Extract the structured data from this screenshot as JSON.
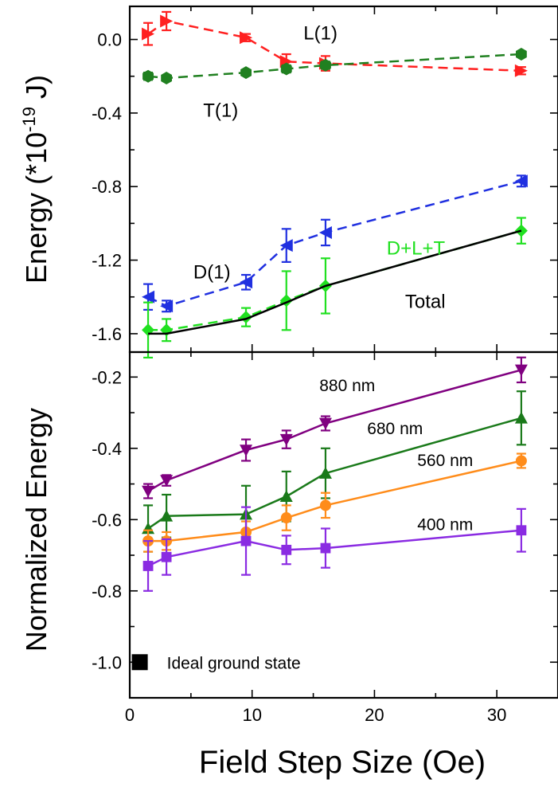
{
  "chart_data": [
    {
      "type": "line",
      "panel": "top",
      "ylabel": "Energy (*10",
      "ylabel_sup": "-19",
      "ylabel_tail": " J)",
      "xlim": [
        0,
        35
      ],
      "ylim": [
        -1.7,
        0.18
      ],
      "yticks": [
        0.0,
        -0.4,
        -0.8,
        -1.2,
        -1.6
      ],
      "ytick_labels": [
        "0.0",
        "-0.4",
        "-0.8",
        "-1.2",
        "-1.6"
      ],
      "grid": false,
      "series": [
        {
          "name": "L(1)",
          "color": "#ff2020",
          "dash": true,
          "marker": "triangle-right",
          "x": [
            1.5,
            3,
            9.5,
            12.8,
            16,
            32
          ],
          "y": [
            0.03,
            0.1,
            0.01,
            -0.12,
            -0.13,
            -0.17
          ],
          "err": [
            0.06,
            0.05,
            0.02,
            0.04,
            0.04,
            0.02
          ]
        },
        {
          "name": "T(1)",
          "color": "#208020",
          "dash": true,
          "marker": "hexagon",
          "x": [
            1.5,
            3,
            9.5,
            12.8,
            16,
            32
          ],
          "y": [
            -0.2,
            -0.21,
            -0.18,
            -0.16,
            -0.14,
            -0.08
          ],
          "err": [
            0.02,
            0.015,
            0.015,
            0.02,
            0.02,
            0.01
          ]
        },
        {
          "name": "D(1)",
          "color": "#2030e0",
          "dash": true,
          "marker": "triangle-left",
          "x": [
            1.5,
            3,
            9.5,
            12.8,
            16,
            32
          ],
          "y": [
            -1.4,
            -1.45,
            -1.32,
            -1.12,
            -1.05,
            -0.77
          ],
          "err": [
            0.07,
            0.03,
            0.04,
            0.09,
            0.07,
            0.03
          ]
        },
        {
          "name": "D+L+T",
          "color": "#20e020",
          "dash": true,
          "marker": "diamond",
          "x": [
            1.5,
            3,
            9.5,
            12.8,
            16,
            32
          ],
          "y": [
            -1.58,
            -1.58,
            -1.51,
            -1.42,
            -1.34,
            -1.04
          ],
          "err": [
            0.15,
            0.06,
            0.05,
            0.16,
            0.15,
            0.07
          ]
        },
        {
          "name": "Total",
          "color": "#000000",
          "dash": false,
          "marker": "none",
          "x": [
            1.5,
            3,
            9.5,
            12.8,
            16,
            32
          ],
          "y": [
            -1.6,
            -1.6,
            -1.52,
            -1.43,
            -1.34,
            -1.04
          ],
          "err": []
        }
      ],
      "annotations": [
        {
          "text": "L(1)",
          "x": 14.2,
          "y": 0.0
        },
        {
          "text": "T(1)",
          "x": 6.0,
          "y": -0.42
        },
        {
          "text": "D(1)",
          "x": 5.2,
          "y": -1.3
        },
        {
          "text": "D+L+T",
          "x": 21.0,
          "y": -1.17,
          "color": "#20e020"
        },
        {
          "text": "Total",
          "x": 22.5,
          "y": -1.46
        }
      ]
    },
    {
      "type": "line",
      "panel": "bottom",
      "xlabel": "Field Step Size (Oe)",
      "ylabel": "Normalized Energy",
      "xlim": [
        0,
        35
      ],
      "ylim": [
        -1.1,
        -0.13
      ],
      "xticks": [
        0,
        10,
        20,
        30
      ],
      "xtick_labels": [
        "0",
        "10",
        "20",
        "30"
      ],
      "yticks": [
        -0.2,
        -0.4,
        -0.6,
        -0.8,
        -1.0
      ],
      "ytick_labels": [
        "-0.2",
        "-0.4",
        "-0.6",
        "-0.8",
        "-1.0"
      ],
      "grid": false,
      "series": [
        {
          "name": "880 nm",
          "color": "#800080",
          "marker": "triangle-down",
          "x": [
            1.5,
            3,
            9.5,
            12.8,
            16,
            32
          ],
          "y": [
            -0.52,
            -0.49,
            -0.405,
            -0.375,
            -0.33,
            -0.18
          ],
          "err": [
            0.02,
            0.015,
            0.03,
            0.025,
            0.02,
            0.035
          ]
        },
        {
          "name": "680 nm",
          "color": "#1a7a1a",
          "marker": "triangle-up",
          "x": [
            1.5,
            3,
            9.5,
            12.8,
            16,
            32
          ],
          "y": [
            -0.625,
            -0.59,
            -0.585,
            -0.535,
            -0.47,
            -0.315
          ],
          "err": [
            0.065,
            0.06,
            0.08,
            0.07,
            0.07,
            0.075
          ]
        },
        {
          "name": "560 nm",
          "color": "#ff8c1a",
          "marker": "circle",
          "x": [
            1.5,
            3,
            9.5,
            12.8,
            16,
            32
          ],
          "y": [
            -0.66,
            -0.66,
            -0.635,
            -0.595,
            -0.56,
            -0.435
          ],
          "err": [
            0.03,
            0.025,
            0.03,
            0.035,
            0.035,
            0.02
          ]
        },
        {
          "name": "400 nm",
          "color": "#8a2be2",
          "marker": "square",
          "x": [
            1.5,
            3,
            9.5,
            12.8,
            16,
            32
          ],
          "y": [
            -0.73,
            -0.705,
            -0.66,
            -0.685,
            -0.68,
            -0.63
          ],
          "err": [
            0.07,
            0.05,
            0.095,
            0.04,
            0.055,
            0.06
          ]
        }
      ],
      "ideal_point": {
        "label": "Ideal ground state",
        "x": 0.3,
        "y": -1.0,
        "color": "#000000"
      },
      "annotations": [
        {
          "text": "880 nm",
          "x": 15.5,
          "y": -0.24
        },
        {
          "text": "680 nm",
          "x": 19.4,
          "y": -0.36
        },
        {
          "text": "560 nm",
          "x": 23.5,
          "y": -0.45
        },
        {
          "text": "400 nm",
          "x": 23.5,
          "y": -0.63
        }
      ]
    }
  ]
}
